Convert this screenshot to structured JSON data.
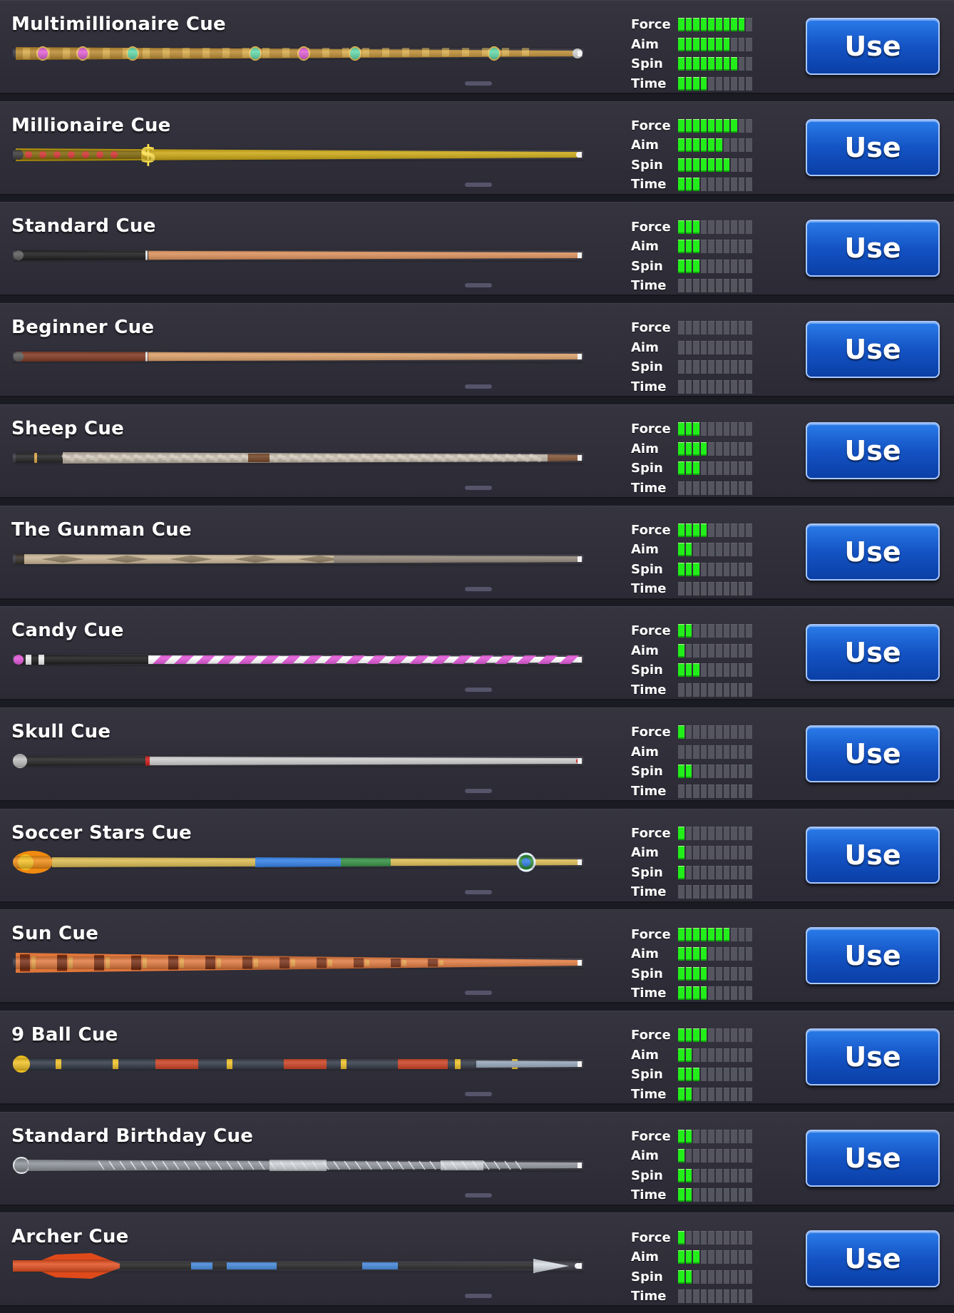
{
  "stat_labels": [
    "Force",
    "Aim",
    "Spin",
    "Time"
  ],
  "stat_max": 10,
  "use_label": "Use",
  "cues": [
    {
      "name": "Multimillionaire Cue",
      "stats": {
        "force": 9,
        "aim": 7,
        "spin": 8,
        "time": 4
      },
      "style": "jeweled-gold",
      "colors": [
        "#b8862a",
        "#f0c75a",
        "#6b4a14",
        "#e05bd0",
        "#5fd8a8"
      ]
    },
    {
      "name": "Millionaire Cue",
      "stats": {
        "force": 8,
        "aim": 6,
        "spin": 7,
        "time": 3
      },
      "style": "gold-dollar",
      "colors": [
        "#c9a40a",
        "#ffe24a",
        "#7a6000",
        "#d22a2a"
      ]
    },
    {
      "name": "Standard Cue",
      "stats": {
        "force": 3,
        "aim": 3,
        "spin": 3,
        "time": 0
      },
      "style": "plain",
      "colors": [
        "#111111",
        "#d98a52",
        "#f2b27a"
      ]
    },
    {
      "name": "Beginner Cue",
      "stats": {
        "force": 0,
        "aim": 0,
        "spin": 0,
        "time": 0
      },
      "style": "plain",
      "colors": [
        "#7a2f16",
        "#d99a60",
        "#f4c28c"
      ]
    },
    {
      "name": "Sheep Cue",
      "stats": {
        "force": 3,
        "aim": 4,
        "spin": 3,
        "time": 0
      },
      "style": "woolly",
      "colors": [
        "#1a1a1a",
        "#b9aea0",
        "#e2d8c8"
      ]
    },
    {
      "name": "The Gunman Cue",
      "stats": {
        "force": 4,
        "aim": 2,
        "spin": 3,
        "time": 0
      },
      "style": "inlaid",
      "colors": [
        "#2a241c",
        "#c7b291",
        "#6b5a40"
      ]
    },
    {
      "name": "Candy Cue",
      "stats": {
        "force": 2,
        "aim": 1,
        "spin": 3,
        "time": 0
      },
      "style": "candy",
      "colors": [
        "#111111",
        "#e04fd6",
        "#ffffff"
      ]
    },
    {
      "name": "Skull Cue",
      "stats": {
        "force": 1,
        "aim": 0,
        "spin": 2,
        "time": 0
      },
      "style": "silver",
      "colors": [
        "#1a1a1a",
        "#c9c9c9",
        "#f2f2f2",
        "#d01010"
      ]
    },
    {
      "name": "Soccer Stars Cue",
      "stats": {
        "force": 1,
        "aim": 1,
        "spin": 1,
        "time": 0
      },
      "style": "soccer",
      "colors": [
        "#f08a10",
        "#d9b84a",
        "#2a7be6",
        "#2a8a3a"
      ]
    },
    {
      "name": "Sun Cue",
      "stats": {
        "force": 7,
        "aim": 4,
        "spin": 4,
        "time": 4
      },
      "style": "carved-orange",
      "colors": [
        "#b7441a",
        "#e0763a",
        "#5a1a08",
        "#e8b04a"
      ]
    },
    {
      "name": "9 Ball Cue",
      "stats": {
        "force": 4,
        "aim": 2,
        "spin": 3,
        "time": 2
      },
      "style": "nineball",
      "colors": [
        "#f0c020",
        "#2a3240",
        "#c83a1a",
        "#8ea0b4"
      ]
    },
    {
      "name": "Standard Birthday Cue",
      "stats": {
        "force": 2,
        "aim": 1,
        "spin": 2,
        "time": 2
      },
      "style": "engraved-silver",
      "colors": [
        "#8a8f96",
        "#e8ecef",
        "#3a3e44"
      ]
    },
    {
      "name": "Archer Cue",
      "stats": {
        "force": 1,
        "aim": 3,
        "spin": 2,
        "time": 0
      },
      "style": "archer",
      "colors": [
        "#e04a1a",
        "#1a1a1a",
        "#3a7fd6",
        "#d6dde4"
      ]
    }
  ]
}
